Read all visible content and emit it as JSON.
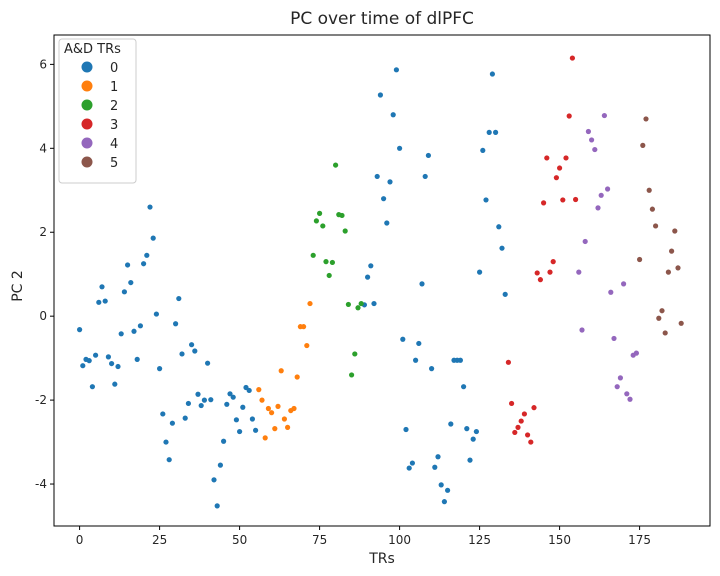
{
  "chart_data": {
    "type": "scatter",
    "title": "PC over time of dlPFC",
    "xlabel": "TRs",
    "ylabel": "PC 2",
    "xlim": [
      -8,
      197
    ],
    "ylim": [
      -5,
      6.7
    ],
    "xticks": [
      0,
      25,
      50,
      75,
      100,
      125,
      150,
      175
    ],
    "yticks": [
      -4,
      -2,
      0,
      2,
      4,
      6
    ],
    "grid": false,
    "legend": {
      "title": "A&D TRs",
      "placement": "top-left"
    },
    "series": [
      {
        "name": "0",
        "color": "#1f77b4",
        "points": [
          [
            0,
            -0.32
          ],
          [
            1,
            -1.18
          ],
          [
            2,
            -1.03
          ],
          [
            3,
            -1.06
          ],
          [
            4,
            -1.68
          ],
          [
            5,
            -0.93
          ],
          [
            6,
            0.33
          ],
          [
            7,
            0.7
          ],
          [
            8,
            0.36
          ],
          [
            9,
            -0.97
          ],
          [
            10,
            -1.13
          ],
          [
            11,
            -1.62
          ],
          [
            12,
            -1.2
          ],
          [
            13,
            -0.42
          ],
          [
            14,
            0.58
          ],
          [
            15,
            1.22
          ],
          [
            16,
            0.8
          ],
          [
            17,
            -0.36
          ],
          [
            18,
            -1.03
          ],
          [
            19,
            -0.23
          ],
          [
            20,
            1.25
          ],
          [
            21,
            1.45
          ],
          [
            22,
            2.6
          ],
          [
            23,
            1.86
          ],
          [
            24,
            0.05
          ],
          [
            25,
            -1.25
          ],
          [
            26,
            -2.33
          ],
          [
            27,
            -3.0
          ],
          [
            28,
            -3.42
          ],
          [
            29,
            -2.55
          ],
          [
            30,
            -0.18
          ],
          [
            31,
            0.42
          ],
          [
            32,
            -0.9
          ],
          [
            33,
            -2.43
          ],
          [
            34,
            -2.08
          ],
          [
            35,
            -0.68
          ],
          [
            36,
            -0.83
          ],
          [
            37,
            -1.86
          ],
          [
            38,
            -2.13
          ],
          [
            39,
            -2.0
          ],
          [
            40,
            -1.12
          ],
          [
            41,
            -1.99
          ],
          [
            42,
            -3.9
          ],
          [
            43,
            -4.52
          ],
          [
            44,
            -3.55
          ],
          [
            45,
            -2.98
          ],
          [
            46,
            -2.1
          ],
          [
            47,
            -1.85
          ],
          [
            48,
            -1.93
          ],
          [
            49,
            -2.47
          ],
          [
            50,
            -2.75
          ],
          [
            51,
            -2.17
          ],
          [
            52,
            -1.7
          ],
          [
            53,
            -1.77
          ],
          [
            54,
            -2.45
          ],
          [
            55,
            -2.72
          ],
          [
            89,
            0.27
          ],
          [
            90,
            0.93
          ],
          [
            91,
            1.2
          ],
          [
            92,
            0.3
          ],
          [
            93,
            3.33
          ],
          [
            94,
            5.27
          ],
          [
            95,
            2.8
          ],
          [
            96,
            2.22
          ],
          [
            97,
            3.2
          ],
          [
            98,
            4.8
          ],
          [
            99,
            5.87
          ],
          [
            100,
            4.0
          ],
          [
            101,
            -0.55
          ],
          [
            102,
            -2.7
          ],
          [
            103,
            -3.62
          ],
          [
            104,
            -3.5
          ],
          [
            105,
            -1.05
          ],
          [
            106,
            -0.65
          ],
          [
            107,
            0.77
          ],
          [
            108,
            3.33
          ],
          [
            109,
            3.83
          ],
          [
            110,
            -1.25
          ],
          [
            111,
            -3.6
          ],
          [
            112,
            -3.35
          ],
          [
            113,
            -4.02
          ],
          [
            114,
            -4.42
          ],
          [
            115,
            -4.15
          ],
          [
            116,
            -2.57
          ],
          [
            117,
            -1.05
          ],
          [
            118,
            -1.05
          ],
          [
            119,
            -1.05
          ],
          [
            120,
            -1.68
          ],
          [
            121,
            -2.68
          ],
          [
            122,
            -3.43
          ],
          [
            123,
            -2.93
          ],
          [
            124,
            -2.75
          ],
          [
            125,
            1.05
          ],
          [
            126,
            3.95
          ],
          [
            127,
            2.77
          ],
          [
            128,
            4.38
          ],
          [
            129,
            5.77
          ],
          [
            130,
            4.38
          ],
          [
            131,
            2.13
          ],
          [
            132,
            1.62
          ],
          [
            133,
            0.52
          ]
        ]
      },
      {
        "name": "1",
        "color": "#ff7f0e",
        "points": [
          [
            56,
            -1.75
          ],
          [
            57,
            -2.0
          ],
          [
            58,
            -2.9
          ],
          [
            59,
            -2.2
          ],
          [
            60,
            -2.3
          ],
          [
            61,
            -2.68
          ],
          [
            62,
            -2.15
          ],
          [
            63,
            -1.3
          ],
          [
            64,
            -2.45
          ],
          [
            65,
            -2.65
          ],
          [
            66,
            -2.25
          ],
          [
            67,
            -2.2
          ],
          [
            68,
            -1.45
          ],
          [
            69,
            -0.25
          ],
          [
            70,
            -0.25
          ],
          [
            71,
            -0.7
          ],
          [
            72,
            0.3
          ]
        ]
      },
      {
        "name": "2",
        "color": "#2ca02c",
        "points": [
          [
            73,
            1.45
          ],
          [
            74,
            2.27
          ],
          [
            75,
            2.45
          ],
          [
            76,
            2.15
          ],
          [
            77,
            1.3
          ],
          [
            78,
            0.97
          ],
          [
            79,
            1.28
          ],
          [
            80,
            3.6
          ],
          [
            81,
            2.42
          ],
          [
            82,
            2.4
          ],
          [
            83,
            2.03
          ],
          [
            84,
            0.28
          ],
          [
            85,
            -1.4
          ],
          [
            86,
            -0.9
          ],
          [
            87,
            0.2
          ],
          [
            88,
            0.3
          ]
        ]
      },
      {
        "name": "3",
        "color": "#d62728",
        "points": [
          [
            134,
            -1.1
          ],
          [
            135,
            -2.08
          ],
          [
            136,
            -2.77
          ],
          [
            137,
            -2.65
          ],
          [
            138,
            -2.5
          ],
          [
            139,
            -2.33
          ],
          [
            140,
            -2.83
          ],
          [
            141,
            -3.0
          ],
          [
            142,
            -2.18
          ],
          [
            143,
            1.03
          ],
          [
            144,
            0.87
          ],
          [
            145,
            2.7
          ],
          [
            146,
            3.77
          ],
          [
            147,
            1.05
          ],
          [
            148,
            1.3
          ],
          [
            149,
            3.3
          ],
          [
            150,
            3.53
          ],
          [
            151,
            2.77
          ],
          [
            152,
            3.77
          ],
          [
            153,
            4.77
          ],
          [
            154,
            6.15
          ],
          [
            155,
            2.78
          ]
        ]
      },
      {
        "name": "4",
        "color": "#9467bd",
        "points": [
          [
            156,
            1.05
          ],
          [
            157,
            -0.33
          ],
          [
            158,
            1.78
          ],
          [
            159,
            4.4
          ],
          [
            160,
            4.2
          ],
          [
            161,
            3.97
          ],
          [
            162,
            2.58
          ],
          [
            163,
            2.88
          ],
          [
            164,
            4.78
          ],
          [
            165,
            3.03
          ],
          [
            166,
            0.57
          ],
          [
            167,
            -0.53
          ],
          [
            168,
            -1.68
          ],
          [
            169,
            -1.47
          ],
          [
            170,
            0.77
          ],
          [
            171,
            -1.85
          ],
          [
            172,
            -1.98
          ],
          [
            173,
            -0.93
          ],
          [
            174,
            -0.88
          ]
        ]
      },
      {
        "name": "5",
        "color": "#8c564b",
        "points": [
          [
            175,
            1.35
          ],
          [
            176,
            4.07
          ],
          [
            177,
            4.7
          ],
          [
            178,
            3.0
          ],
          [
            179,
            2.55
          ],
          [
            180,
            2.15
          ],
          [
            181,
            -0.05
          ],
          [
            182,
            0.13
          ],
          [
            183,
            -0.4
          ],
          [
            184,
            1.05
          ],
          [
            185,
            1.55
          ],
          [
            186,
            2.03
          ],
          [
            187,
            1.15
          ],
          [
            188,
            -0.17
          ]
        ]
      }
    ]
  }
}
